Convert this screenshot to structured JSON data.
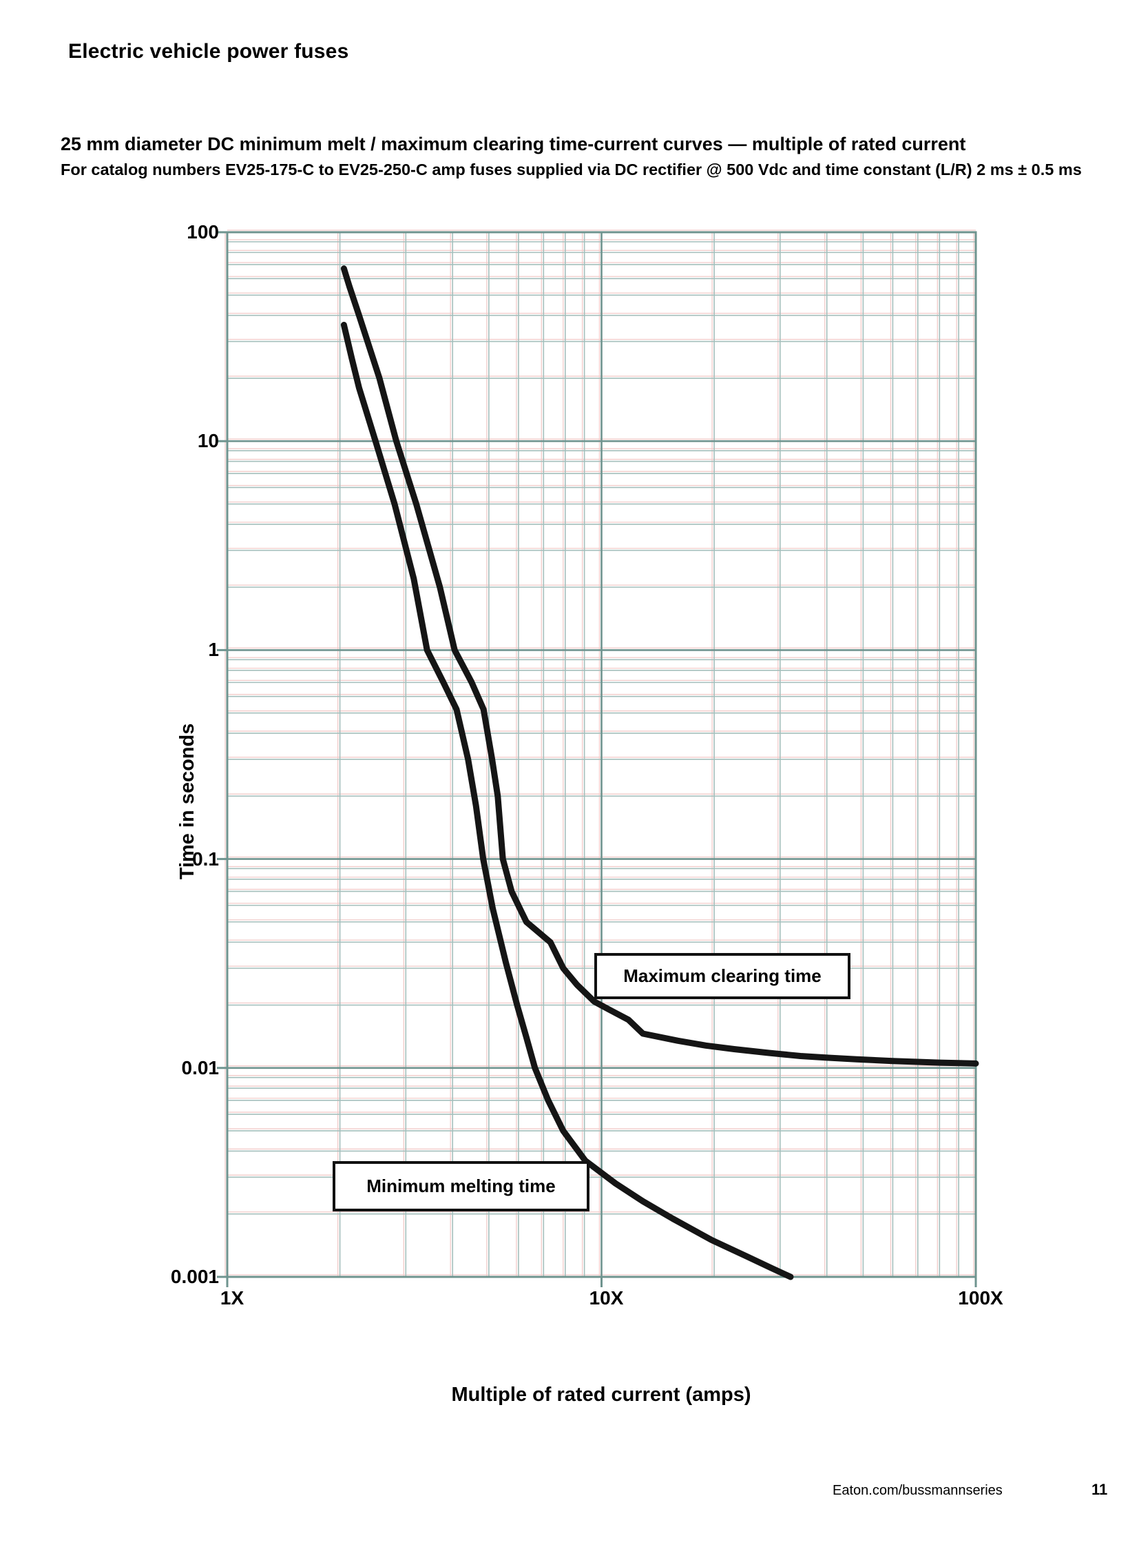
{
  "page": {
    "header_title": "Electric vehicle power fuses",
    "footer_link": "Eaton.com/bussmannseries",
    "page_number": "11"
  },
  "chart": {
    "title": "25 mm diameter DC minimum melt / maximum clearing time-current curves — multiple of rated current",
    "subtitle": "For catalog numbers EV25-175-C to EV25-250-C amp fuses supplied via DC rectifier @ 500 Vdc and time constant (L/R) 2 ms ± 0.5 ms",
    "colors": {
      "grid_minor": "#a4bfbc",
      "grid_major": "#6f948f",
      "grid_fringe": "#f2cbc9",
      "curve": "#151515",
      "text": "#000000"
    }
  },
  "chart_data": {
    "type": "line",
    "title": "25 mm diameter DC minimum melt / maximum clearing time-current curves — multiple of rated current",
    "xlabel": "Multiple of rated current (amps)",
    "ylabel": "Time in seconds",
    "x_scale": "log",
    "y_scale": "log",
    "xlim": [
      1,
      100
    ],
    "ylim": [
      0.001,
      100
    ],
    "grid": "log minor + major, on",
    "legend_position": "inline boxed annotations",
    "x_ticks": [
      {
        "value": 1,
        "label": "1X"
      },
      {
        "value": 10,
        "label": "10X"
      },
      {
        "value": 100,
        "label": "100X"
      }
    ],
    "y_ticks": [
      {
        "value": 100,
        "label": "100"
      },
      {
        "value": 10,
        "label": "10"
      },
      {
        "value": 1,
        "label": "1"
      },
      {
        "value": 0.1,
        "label": "0.1"
      },
      {
        "value": 0.01,
        "label": "0.01"
      },
      {
        "value": 0.001,
        "label": "0.001"
      }
    ],
    "series": [
      {
        "name": "Minimum melting time",
        "points_multiple_seconds": [
          [
            2.05,
            36
          ],
          [
            2.15,
            25
          ],
          [
            2.25,
            18
          ],
          [
            2.49,
            10
          ],
          [
            2.8,
            5
          ],
          [
            3.15,
            2.2
          ],
          [
            3.42,
            1
          ],
          [
            3.78,
            0.7
          ],
          [
            4.1,
            0.52
          ],
          [
            4.4,
            0.3
          ],
          [
            4.62,
            0.18
          ],
          [
            4.83,
            0.1
          ],
          [
            5.12,
            0.058
          ],
          [
            5.55,
            0.032
          ],
          [
            5.95,
            0.02
          ],
          [
            6.3,
            0.014
          ],
          [
            6.64,
            0.01
          ],
          [
            7.2,
            0.007
          ],
          [
            7.9,
            0.005
          ],
          [
            9.05,
            0.0036
          ],
          [
            10.9,
            0.0028
          ],
          [
            12.9,
            0.0023
          ],
          [
            15.5,
            0.0019
          ],
          [
            19.7,
            0.0015
          ],
          [
            24.5,
            0.00125
          ],
          [
            28.5,
            0.0011
          ],
          [
            32,
            0.001
          ]
        ]
      },
      {
        "name": "Maximum clearing time",
        "points_multiple_seconds": [
          [
            2.05,
            67
          ],
          [
            2.12,
            55
          ],
          [
            2.25,
            40
          ],
          [
            2.55,
            20
          ],
          [
            2.83,
            10
          ],
          [
            3.2,
            5
          ],
          [
            3.7,
            2
          ],
          [
            4.05,
            1
          ],
          [
            4.5,
            0.7
          ],
          [
            4.84,
            0.52
          ],
          [
            5.1,
            0.3
          ],
          [
            5.28,
            0.2
          ],
          [
            5.45,
            0.1
          ],
          [
            5.75,
            0.07
          ],
          [
            6.3,
            0.05
          ],
          [
            7.3,
            0.04
          ],
          [
            7.9,
            0.03
          ],
          [
            8.6,
            0.025
          ],
          [
            9.56,
            0.0208
          ],
          [
            10.5,
            0.019
          ],
          [
            11.8,
            0.017
          ],
          [
            12.9,
            0.0146
          ],
          [
            16,
            0.0135
          ],
          [
            19,
            0.0128
          ],
          [
            22.6,
            0.0123
          ],
          [
            28,
            0.0118
          ],
          [
            34,
            0.0114
          ],
          [
            40,
            0.0112
          ],
          [
            48,
            0.011
          ],
          [
            60,
            0.0108
          ],
          [
            80,
            0.0106
          ],
          [
            100,
            0.0105
          ]
        ]
      }
    ],
    "annotations": [
      {
        "label": "Maximum clearing time"
      },
      {
        "label": "Minimum melting time"
      }
    ]
  }
}
